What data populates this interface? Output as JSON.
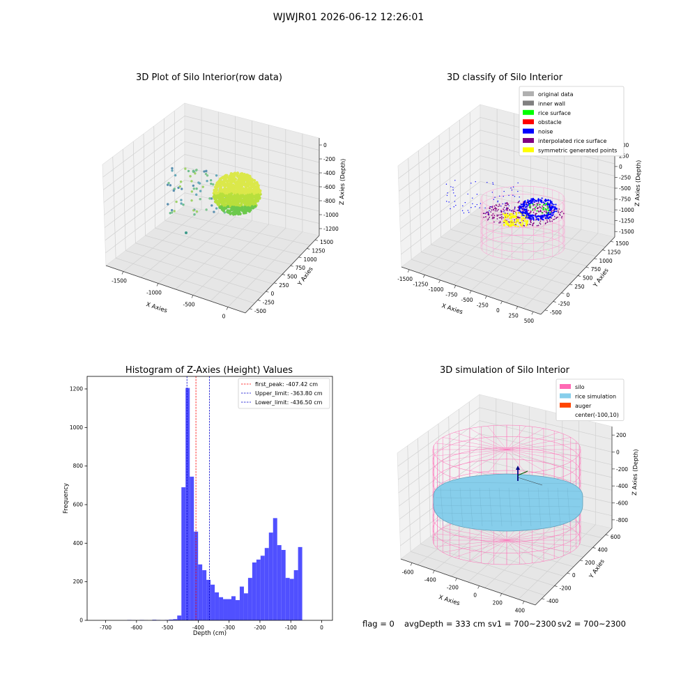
{
  "suptitle": "WJWJR01 2026-06-12 12:26:01",
  "colors": {
    "histogram_bar": "#5050ff",
    "peak_line": "#ff0000",
    "limit_line": "#0000cc",
    "pane": "#f2f2f2",
    "grid": "#d9d9d9",
    "silo": "#ff69b4",
    "rice": "#87ceeb",
    "auger": "#ff4500",
    "noise": "#0000ff",
    "rice_surface": "#00ff00",
    "symmetric": "#ffff00",
    "interpolated": "#800080"
  },
  "chart_data": [
    {
      "type": "scatter",
      "title": "3D Plot of Silo Interior(row data)",
      "xlabel": "X Axies",
      "ylabel": "Y Axies",
      "zlabel": "Z Axies (Depth)",
      "x_ticks": [
        "-1500",
        "-1000",
        "-500",
        "0"
      ],
      "y_ticks": [
        "-500",
        "-250",
        "0",
        "250",
        "500",
        "750",
        "1000",
        "1250",
        "1500"
      ],
      "z_ticks": [
        "-1200",
        "-1000",
        "-800",
        "-600",
        "-400",
        "-200",
        "0"
      ]
    },
    {
      "type": "scatter",
      "title": "3D classify of Silo Interior",
      "xlabel": "X Axies",
      "ylabel": "Y Axies",
      "zlabel": "Z Axies (Depth)",
      "x_ticks": [
        "-1500",
        "-1250",
        "-1000",
        "-750",
        "-500",
        "-250",
        "0",
        "250",
        "500"
      ],
      "y_ticks": [
        "-500",
        "-250",
        "0",
        "250",
        "500",
        "750",
        "1000",
        "1250",
        "1500"
      ],
      "z_ticks": [
        "-1500",
        "-1250",
        "-1000",
        "-750",
        "-500",
        "-250",
        "0",
        "250",
        "500"
      ],
      "legend": [
        {
          "label": "original data",
          "color": "#b0b0b0"
        },
        {
          "label": "inner wall",
          "color": "#808080"
        },
        {
          "label": "rice surface",
          "color": "#00ff00"
        },
        {
          "label": "obstacle",
          "color": "#ff0000"
        },
        {
          "label": "noise",
          "color": "#0000ff"
        },
        {
          "label": "interpolated rice surface",
          "color": "#800080"
        },
        {
          "label": "symmetric generated points",
          "color": "#ffff00"
        }
      ],
      "legend_position": "top-right"
    },
    {
      "type": "bar",
      "title": "Histogram of Z-Axies (Height) Values",
      "xlabel": "Depth (cm)",
      "ylabel": "Frequency",
      "xlim": [
        -760,
        35
      ],
      "ylim": [
        0,
        1265
      ],
      "x_ticks": [
        -700,
        -600,
        -500,
        -400,
        -300,
        -200,
        -100,
        0
      ],
      "y_ticks": [
        0,
        200,
        400,
        600,
        800,
        1000,
        1200
      ],
      "bin_width": 13.5,
      "bin_start": -630,
      "values": [
        2,
        1,
        0,
        2,
        1,
        0,
        3,
        2,
        1,
        2,
        4,
        6,
        25,
        690,
        1205,
        745,
        460,
        290,
        260,
        210,
        185,
        145,
        120,
        110,
        110,
        125,
        105,
        175,
        140,
        220,
        300,
        315,
        335,
        375,
        455,
        530,
        390,
        365,
        220,
        215,
        260,
        380
      ],
      "vlines": [
        {
          "label": "first_peak: -407.42 cm",
          "x": -407.42,
          "color": "#ff0000"
        },
        {
          "label": "Upper_limit: -363.80 cm",
          "x": -363.8,
          "color": "#0000cc"
        },
        {
          "label": "Lower_limit: -436.50 cm",
          "x": -436.5,
          "color": "#0000cc"
        }
      ],
      "legend_position": "top-right"
    },
    {
      "type": "scatter",
      "title": "3D simulation of Silo Interior",
      "xlabel": "X Axies",
      "ylabel": "Y Axies",
      "zlabel": "Z Axies (Depth)",
      "x_ticks": [
        "-600",
        "-400",
        "-200",
        "0",
        "200",
        "400"
      ],
      "y_ticks": [
        "-400",
        "-200",
        "0",
        "200",
        "400",
        "600"
      ],
      "z_ticks": [
        "-800",
        "-600",
        "-400",
        "-200",
        "0",
        "200"
      ],
      "legend": [
        {
          "label": "silo",
          "color": "#ff69b4"
        },
        {
          "label": "rice simulation",
          "color": "#87ceeb"
        },
        {
          "label": "auger",
          "color": "#ff4500"
        },
        {
          "label": "center(-100,10)",
          "color": ""
        }
      ],
      "legend_position": "top-right"
    }
  ],
  "footer": {
    "flag": "flag = 0",
    "avg_depth": "avgDepth = 333 cm",
    "sv1": "sv1 = 700~2300",
    "sv2": "sv2 = 700~2300"
  }
}
